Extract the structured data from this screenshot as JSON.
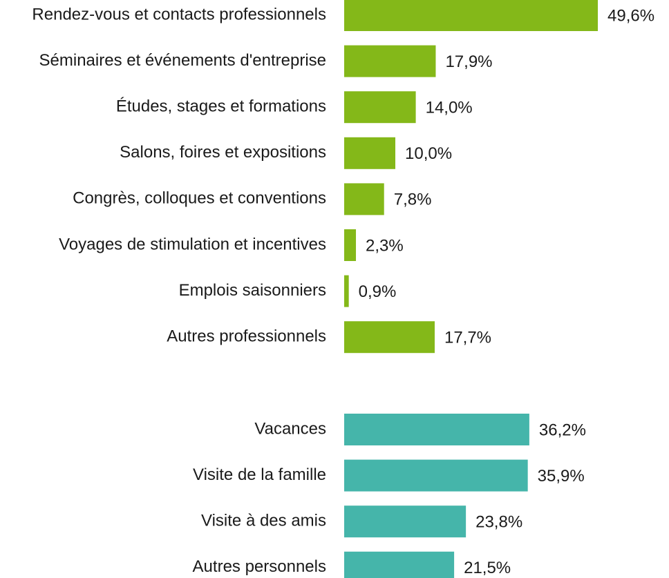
{
  "chart_data": [
    {
      "type": "bar",
      "orientation": "horizontal",
      "color": "#84b819",
      "categories": [
        "Rendez-vous et contacts professionnels",
        "Séminaires et événements d'entreprise",
        "Études, stages et formations",
        "Salons, foires et expositions",
        "Congrès, colloques et conventions",
        "Voyages de stimulation et incentives",
        "Emplois saisonniers",
        "Autres professionnels"
      ],
      "values": [
        49.6,
        17.9,
        14.0,
        10.0,
        7.8,
        2.3,
        0.9,
        17.7
      ],
      "value_labels": [
        "49,6%",
        "17,9%",
        "14,0%",
        "10,0%",
        "7,8%",
        "2,3%",
        "0,9%",
        "17,7%"
      ]
    },
    {
      "type": "bar",
      "orientation": "horizontal",
      "color": "#45b5aa",
      "categories": [
        "Vacances",
        "Visite de la famille",
        "Visite à des amis",
        "Autres personnels"
      ],
      "values": [
        36.2,
        35.9,
        23.8,
        21.5
      ],
      "value_labels": [
        "36,2%",
        "35,9%",
        "23,8%",
        "21,5%"
      ]
    }
  ]
}
